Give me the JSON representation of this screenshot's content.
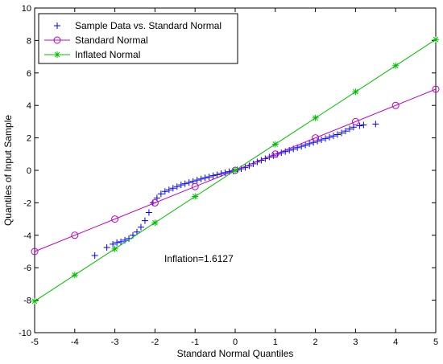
{
  "chart_data": {
    "type": "scatter",
    "xlabel": "Standard Normal Quantiles",
    "ylabel": "Quantiles of Input Sample",
    "xlim": [
      -5,
      5
    ],
    "ylim": [
      -10,
      10
    ],
    "xticks": [
      -5,
      -4,
      -3,
      -2,
      -1,
      0,
      1,
      2,
      3,
      4,
      5
    ],
    "yticks": [
      -10,
      -8,
      -6,
      -4,
      -2,
      0,
      2,
      4,
      6,
      8,
      10
    ],
    "grid": false,
    "legend_position": "top-left",
    "annotation": "Inflation=1.6127",
    "series": [
      {
        "name": "Sample Data vs. Standard Normal",
        "marker": "plus",
        "color": "#0000ff",
        "points": [
          [
            -3.5,
            -5.25
          ],
          [
            -3.2,
            -4.75
          ],
          [
            -3.05,
            -4.55
          ],
          [
            -2.95,
            -4.45
          ],
          [
            -2.85,
            -4.4
          ],
          [
            -2.75,
            -4.3
          ],
          [
            -2.65,
            -4.2
          ],
          [
            -2.55,
            -4.0
          ],
          [
            -2.45,
            -3.8
          ],
          [
            -2.35,
            -3.5
          ],
          [
            -2.25,
            -3.1
          ],
          [
            -2.15,
            -2.6
          ],
          [
            -2.05,
            -2.0
          ],
          [
            -1.95,
            -1.7
          ],
          [
            -1.85,
            -1.45
          ],
          [
            -1.75,
            -1.3
          ],
          [
            -1.65,
            -1.2
          ],
          [
            -1.55,
            -1.1
          ],
          [
            -1.45,
            -1.0
          ],
          [
            -1.35,
            -0.9
          ],
          [
            -1.25,
            -0.82
          ],
          [
            -1.15,
            -0.75
          ],
          [
            -1.05,
            -0.68
          ],
          [
            -0.95,
            -0.6
          ],
          [
            -0.85,
            -0.53
          ],
          [
            -0.75,
            -0.46
          ],
          [
            -0.65,
            -0.4
          ],
          [
            -0.55,
            -0.33
          ],
          [
            -0.45,
            -0.27
          ],
          [
            -0.35,
            -0.2
          ],
          [
            -0.25,
            -0.14
          ],
          [
            -0.15,
            -0.08
          ],
          [
            -0.05,
            -0.03
          ],
          [
            0.05,
            0.03
          ],
          [
            0.15,
            0.1
          ],
          [
            0.25,
            0.18
          ],
          [
            0.35,
            0.28
          ],
          [
            0.45,
            0.4
          ],
          [
            0.55,
            0.52
          ],
          [
            0.65,
            0.62
          ],
          [
            0.75,
            0.72
          ],
          [
            0.85,
            0.82
          ],
          [
            0.95,
            0.9
          ],
          [
            1.05,
            1.0
          ],
          [
            1.15,
            1.08
          ],
          [
            1.25,
            1.16
          ],
          [
            1.35,
            1.24
          ],
          [
            1.45,
            1.32
          ],
          [
            1.55,
            1.4
          ],
          [
            1.65,
            1.48
          ],
          [
            1.75,
            1.56
          ],
          [
            1.85,
            1.64
          ],
          [
            1.95,
            1.72
          ],
          [
            2.05,
            1.8
          ],
          [
            2.15,
            1.88
          ],
          [
            2.25,
            1.96
          ],
          [
            2.35,
            2.04
          ],
          [
            2.45,
            2.12
          ],
          [
            2.55,
            2.2
          ],
          [
            2.65,
            2.3
          ],
          [
            2.75,
            2.42
          ],
          [
            2.85,
            2.55
          ],
          [
            2.95,
            2.66
          ],
          [
            3.1,
            2.75
          ],
          [
            3.2,
            2.8
          ],
          [
            3.5,
            2.85
          ]
        ]
      },
      {
        "name": "Standard Normal",
        "marker": "circle",
        "color": "#c000c0",
        "line": [
          [
            -5,
            -5
          ],
          [
            5,
            5
          ]
        ],
        "points": [
          [
            -5,
            -5
          ],
          [
            -4,
            -4
          ],
          [
            -3,
            -3
          ],
          [
            -2,
            -2
          ],
          [
            -1,
            -1
          ],
          [
            0,
            0
          ],
          [
            1,
            1
          ],
          [
            2,
            2
          ],
          [
            3,
            3
          ],
          [
            4,
            4
          ],
          [
            5,
            5
          ]
        ]
      },
      {
        "name": "Inflated Normal",
        "marker": "star",
        "color": "#00c000",
        "line": [
          [
            -5,
            -8.06
          ],
          [
            5,
            8.06
          ]
        ],
        "points": [
          [
            -5,
            -8.06
          ],
          [
            -4,
            -6.45
          ],
          [
            -3,
            -4.84
          ],
          [
            -2,
            -3.23
          ],
          [
            -1,
            -1.61
          ],
          [
            0,
            0
          ],
          [
            1,
            1.61
          ],
          [
            2,
            3.23
          ],
          [
            3,
            4.84
          ],
          [
            4,
            6.45
          ],
          [
            5,
            8.06
          ]
        ]
      }
    ]
  }
}
